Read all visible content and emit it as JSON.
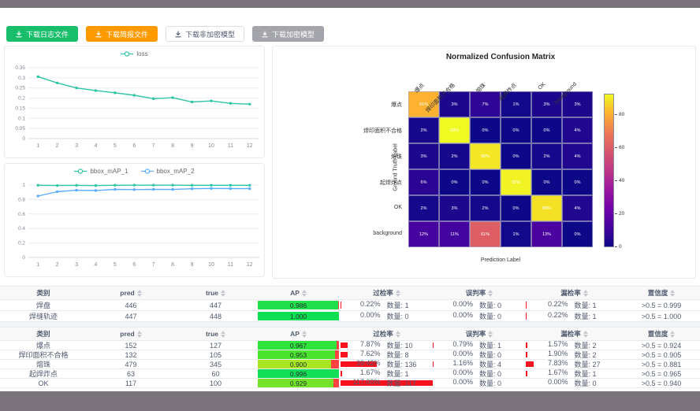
{
  "page": {
    "frame_color": "#7b737b",
    "content_bg": "#ffffff"
  },
  "toolbar": {
    "buttons": [
      {
        "label": "下载日志文件",
        "bg": "#19be6b",
        "color": "#ffffff",
        "border": "#19be6b"
      },
      {
        "label": "下载简报文件",
        "bg": "#ff9900",
        "color": "#ffffff",
        "border": "#ff9900"
      },
      {
        "label": "下载非加密模型",
        "bg": "#ffffff",
        "color": "#515a6e",
        "border": "#dcdee2"
      },
      {
        "label": "下载加密模型",
        "bg": "#a3a5aa",
        "color": "#ffffff",
        "border": "#a3a5aa"
      }
    ]
  },
  "chart_data": [
    {
      "id": "loss",
      "type": "line",
      "x": [
        1,
        2,
        3,
        4,
        5,
        6,
        7,
        8,
        9,
        10,
        11,
        12
      ],
      "series": [
        {
          "name": "loss",
          "color": "#2cc5a5",
          "values": [
            0.306,
            0.275,
            0.25,
            0.237,
            0.226,
            0.214,
            0.197,
            0.202,
            0.181,
            0.186,
            0.174,
            0.17
          ]
        }
      ],
      "ylim": [
        0,
        0.35
      ],
      "ystep": 0.05,
      "grid": true,
      "legend_position": "top"
    },
    {
      "id": "bbox_map",
      "type": "line",
      "x": [
        1,
        2,
        3,
        4,
        5,
        6,
        7,
        8,
        9,
        10,
        11,
        12
      ],
      "series": [
        {
          "name": "bbox_mAP_1",
          "color": "#2cc5a5",
          "values": [
            0.997,
            0.993,
            0.996,
            0.992,
            0.997,
            0.998,
            0.998,
            0.998,
            0.997,
            0.997,
            0.997,
            0.997
          ]
        },
        {
          "name": "bbox_mAP_2",
          "color": "#5cadff",
          "values": [
            0.848,
            0.908,
            0.928,
            0.924,
            0.94,
            0.937,
            0.94,
            0.939,
            0.949,
            0.953,
            0.951,
            0.95
          ]
        }
      ],
      "ylim": [
        0,
        1
      ],
      "ystep": 0.2,
      "grid": true,
      "legend_position": "top"
    },
    {
      "id": "confusion_matrix",
      "type": "heatmap",
      "title": "Normalized Confusion Matrix",
      "xlabel": "Prediction Label",
      "ylabel": "Ground Truth Label",
      "labels": [
        "爆点",
        "焊印面积不合格",
        "熔珠",
        "起焊炸点",
        "OK",
        "background"
      ],
      "values_percent": [
        [
          81,
          3,
          7,
          1,
          3,
          3
        ],
        [
          2,
          93,
          0,
          0,
          0,
          4
        ],
        [
          3,
          2,
          90,
          0,
          2,
          4
        ],
        [
          6,
          0,
          0,
          92,
          0,
          0
        ],
        [
          2,
          3,
          2,
          0,
          89,
          4
        ],
        [
          12,
          11,
          61,
          1,
          13,
          0
        ]
      ],
      "vmax": 93,
      "colormap": "plasma",
      "colorbar_ticks": [
        0,
        20,
        40,
        60,
        80
      ]
    }
  ],
  "table_headers": {
    "class": "类别",
    "pred": "pred",
    "true": "true",
    "ap": "AP",
    "over": "过检率",
    "mis": "误判率",
    "miss": "漏检率",
    "conf": "置信度"
  },
  "count_label": "数量",
  "rate_bar_color": "#f8121f",
  "ap_track_color": "#ff4141",
  "tables": [
    {
      "rows": [
        {
          "class": "焊盘",
          "pred": "446",
          "true": "447",
          "ap": "0.986",
          "ap_color": "#1fe04b",
          "over": {
            "pct": "0.22%",
            "count": "1"
          },
          "mis": {
            "pct": "0.00%",
            "count": "0"
          },
          "miss": {
            "pct": "0.22%",
            "count": "1"
          },
          "conf": ">0.5 = 0.999"
        },
        {
          "class": "焊缝轨迹",
          "pred": "447",
          "true": "448",
          "ap": "1.000",
          "ap_color": "#0ddf52",
          "over": {
            "pct": "0.00%",
            "count": "0"
          },
          "mis": {
            "pct": "0.00%",
            "count": "0"
          },
          "miss": {
            "pct": "0.22%",
            "count": "1"
          },
          "conf": ">0.5 = 1.000"
        }
      ]
    },
    {
      "rows": [
        {
          "class": "爆点",
          "pred": "152",
          "true": "127",
          "ap": "0.967",
          "ap_color": "#2fe23c",
          "over": {
            "pct": "7.87%",
            "count": "10"
          },
          "mis": {
            "pct": "0.79%",
            "count": "1"
          },
          "miss": {
            "pct": "1.57%",
            "count": "2"
          },
          "conf": ">0.5 = 0.924"
        },
        {
          "class": "焊印面积不合格",
          "pred": "132",
          "true": "105",
          "ap": "0.953",
          "ap_color": "#4ae42f",
          "over": {
            "pct": "7.62%",
            "count": "8"
          },
          "mis": {
            "pct": "0.00%",
            "count": "0"
          },
          "miss": {
            "pct": "1.90%",
            "count": "2"
          },
          "conf": ">0.5 = 0.905"
        },
        {
          "class": "熔珠",
          "pred": "479",
          "true": "345",
          "ap": "0.900",
          "ap_color": "#a8e522",
          "over": {
            "pct": "39.42%",
            "count": "136"
          },
          "mis": {
            "pct": "1.16%",
            "count": "4"
          },
          "miss": {
            "pct": "7.83%",
            "count": "27"
          },
          "conf": ">0.5 = 0.881"
        },
        {
          "class": "起焊炸点",
          "pred": "63",
          "true": "60",
          "ap": "0.996",
          "ap_color": "#12df57",
          "over": {
            "pct": "1.67%",
            "count": "1"
          },
          "mis": {
            "pct": "0.00%",
            "count": "0"
          },
          "miss": {
            "pct": "1.67%",
            "count": "1"
          },
          "conf": ">0.5 = 0.965"
        },
        {
          "class": "OK",
          "pred": "117",
          "true": "100",
          "ap": "0.929",
          "ap_color": "#74e42a",
          "over": {
            "pct": "117.00%",
            "count": "117"
          },
          "mis": {
            "pct": "0.00%",
            "count": "0"
          },
          "miss": {
            "pct": "0.00%",
            "count": "0"
          },
          "conf": ">0.5 = 0.940"
        }
      ]
    }
  ]
}
